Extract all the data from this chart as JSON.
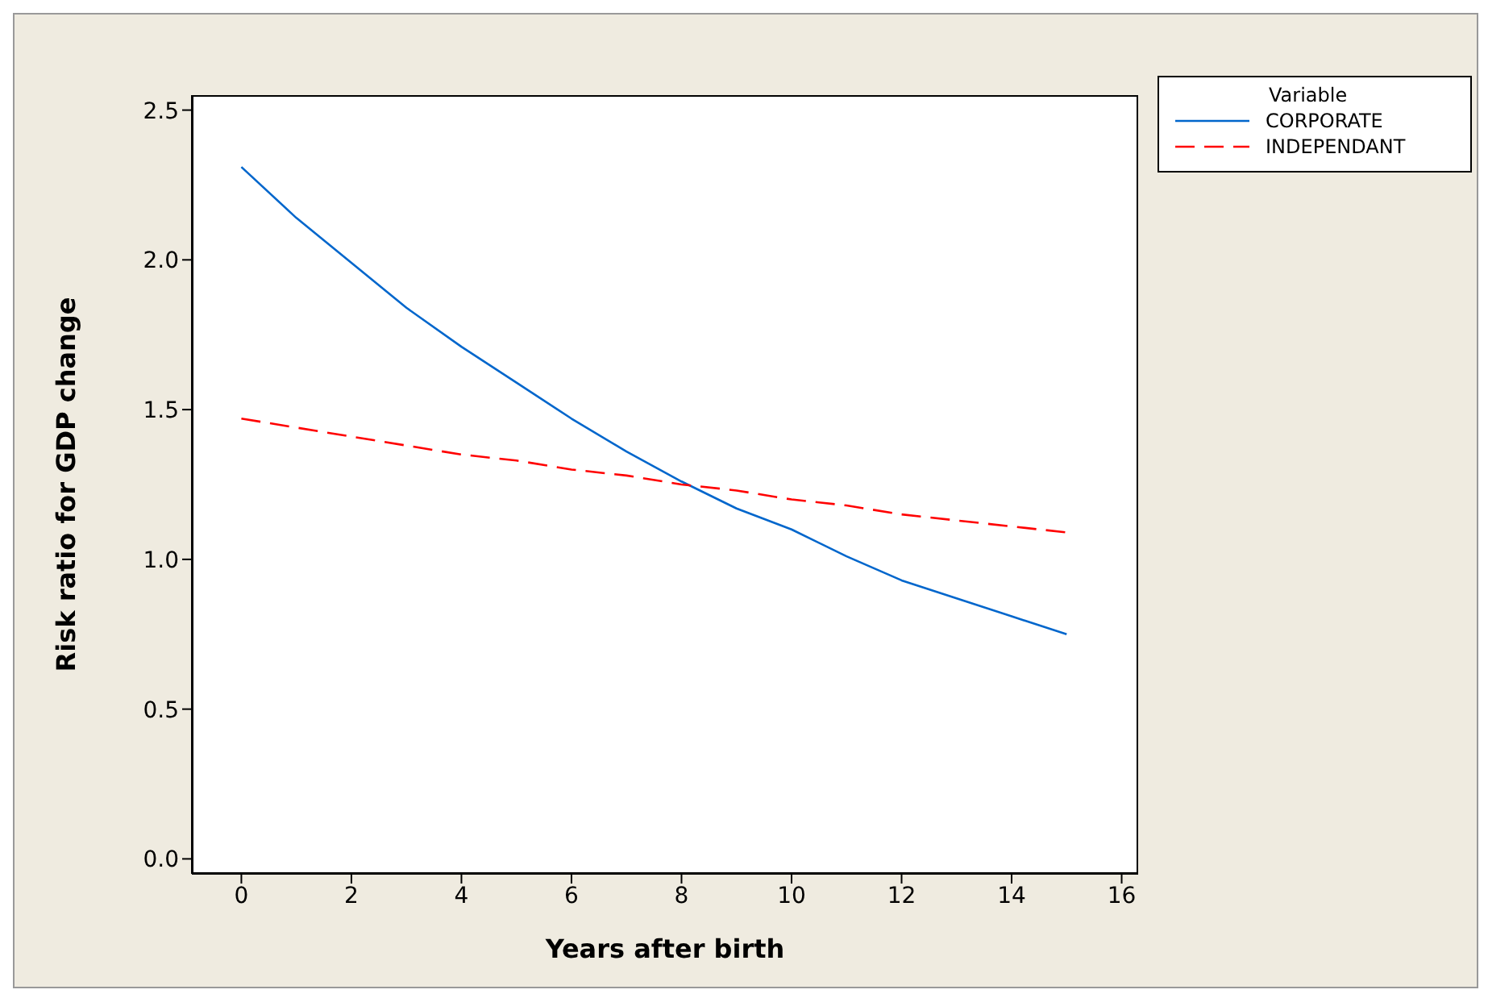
{
  "chart_data": {
    "type": "line",
    "xlabel": "Years after birth",
    "ylabel": "Risk ratio for GDP change",
    "legend_title": "Variable",
    "legend": "top right",
    "grid": false,
    "marker": "none",
    "x": [
      0,
      1,
      2,
      3,
      4,
      5,
      6,
      7,
      8,
      9,
      10,
      11,
      12,
      13,
      14,
      15
    ],
    "xlim": [
      -0.9,
      16.3
    ],
    "xticks": [
      0,
      2,
      4,
      6,
      8,
      10,
      12,
      14,
      16
    ],
    "ylim": [
      -0.05,
      2.55
    ],
    "yticks": [
      {
        "value": 0,
        "label": "0.0"
      },
      {
        "value": 0.5,
        "label": "0.5"
      },
      {
        "value": 1,
        "label": "1.0"
      },
      {
        "value": 1.5,
        "label": "1.5"
      },
      {
        "value": 2,
        "label": "2.0"
      },
      {
        "value": 2.5,
        "label": "2.5"
      }
    ],
    "series": [
      {
        "name": "CORPORATE",
        "color": "#0066cc",
        "line_style": "solid",
        "values": [
          2.31,
          2.14,
          1.99,
          1.84,
          1.71,
          1.59,
          1.47,
          1.36,
          1.26,
          1.17,
          1.1,
          1.01,
          0.93,
          0.87,
          0.81,
          0.75
        ]
      },
      {
        "name": "INDEPENDANT",
        "color": "#ff0000",
        "line_style": "dashed",
        "values": [
          1.47,
          1.44,
          1.41,
          1.38,
          1.35,
          1.33,
          1.3,
          1.28,
          1.25,
          1.23,
          1.2,
          1.18,
          1.15,
          1.13,
          1.11,
          1.09
        ]
      }
    ]
  }
}
